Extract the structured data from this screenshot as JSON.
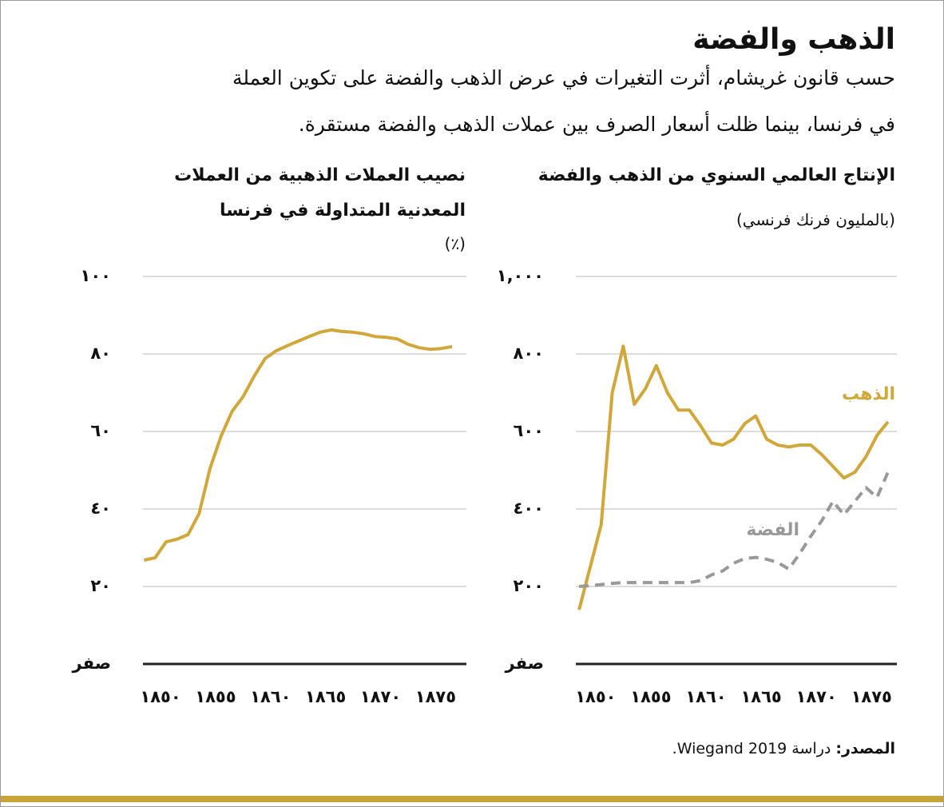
{
  "title": "الذهب والفضة",
  "subtitle": [
    "حسب قانون غريشام، أثرت التغيرات في عرض الذهب والفضة على تكوين العملة",
    "في فرنسا، بينما ظلت أسعار الصرف بين عملات الذهب والفضة مستقرة."
  ],
  "source_label": "المصدر:",
  "source": "دراسة Wiegand 2019.",
  "chart_data": [
    {
      "type": "line",
      "title": "الإنتاج العالمي السنوي من الذهب والفضة",
      "unit": "(بالمليون فرنك فرنسي)",
      "x": [
        1848.5,
        1849.5,
        1850.5,
        1851.5,
        1852.5,
        1853.5,
        1854.5,
        1855.5,
        1856.5,
        1857.5,
        1858.5,
        1859.5,
        1860.5,
        1861.5,
        1862.5,
        1863.5,
        1864.5,
        1865.5,
        1866.5,
        1867.5,
        1868.5,
        1869.5,
        1870.5,
        1871.5,
        1872.5,
        1873.5,
        1874.5,
        1875.5,
        1876.5
      ],
      "series": [
        {
          "name": "الذهب",
          "color": "#d1a73a",
          "dash": false,
          "values": [
            140,
            250,
            360,
            700,
            820,
            670,
            710,
            770,
            700,
            655,
            655,
            615,
            570,
            565,
            580,
            620,
            640,
            580,
            565,
            560,
            565,
            565,
            540,
            510,
            480,
            495,
            535,
            590,
            625
          ]
        },
        {
          "name": "الفضة",
          "color": "#999999",
          "dash": true,
          "values": [
            200,
            202,
            205,
            208,
            210,
            210,
            210,
            210,
            210,
            210,
            210,
            215,
            230,
            240,
            260,
            272,
            275,
            270,
            262,
            245,
            285,
            330,
            370,
            420,
            385,
            420,
            455,
            430,
            495
          ]
        }
      ],
      "xlim": [
        1848.2,
        1877.3
      ],
      "xticks": [
        {
          "value": 1850,
          "label": "١٨٥٠"
        },
        {
          "value": 1855,
          "label": "١٨٥٥"
        },
        {
          "value": 1860,
          "label": "١٨٦٠"
        },
        {
          "value": 1865,
          "label": "١٨٦٥"
        },
        {
          "value": 1870,
          "label": "١٨٧٠"
        },
        {
          "value": 1875,
          "label": "١٨٧٥"
        }
      ],
      "ylim": [
        0,
        1000
      ],
      "yticks": [
        {
          "value": 0,
          "label": "صفر"
        },
        {
          "value": 200,
          "label": "٢٠٠"
        },
        {
          "value": 400,
          "label": "٤٠٠"
        },
        {
          "value": 600,
          "label": "٦٠٠"
        },
        {
          "value": 800,
          "label": "٨٠٠"
        },
        {
          "value": 1000,
          "label": "١,٠٠٠"
        }
      ],
      "grid": true
    },
    {
      "type": "line",
      "title": [
        "نصيب العملات الذهبية من العملات",
        "المعدنية المتداولة في فرنسا"
      ],
      "unit": "(٪)",
      "x": [
        1848.5,
        1849.5,
        1850.5,
        1851.5,
        1852.5,
        1853.5,
        1854.5,
        1855.5,
        1856.5,
        1857.5,
        1858.5,
        1859.5,
        1860.5,
        1861.5,
        1862.5,
        1863.5,
        1864.5,
        1865.5,
        1866.5,
        1867.5,
        1868.5,
        1869.5,
        1870.5,
        1871.5,
        1872.5,
        1873.5,
        1874.5,
        1875.5,
        1876.5
      ],
      "series": [
        {
          "color": "#d1a73a",
          "dash": false,
          "values": [
            26.8,
            27.4,
            31.5,
            32.2,
            33.4,
            38.8,
            50.5,
            58.8,
            65.2,
            69,
            74.2,
            78.8,
            80.8,
            82.1,
            83.3,
            84.5,
            85.6,
            86.2,
            85.8,
            85.6,
            85.2,
            84.5,
            84.3,
            83.9,
            82.5,
            81.6,
            81.2,
            81.4,
            81.9
          ]
        }
      ],
      "xlim": [
        1848.4,
        1877.8
      ],
      "xticks": [
        {
          "value": 1850,
          "label": "١٨٥٠"
        },
        {
          "value": 1855,
          "label": "١٨٥٥"
        },
        {
          "value": 1860,
          "label": "١٨٦٠"
        },
        {
          "value": 1865,
          "label": "١٨٦٥"
        },
        {
          "value": 1870,
          "label": "١٨٧٠"
        },
        {
          "value": 1875,
          "label": "١٨٧٥"
        }
      ],
      "ylim": [
        0,
        100
      ],
      "yticks": [
        {
          "value": 0,
          "label": "صفر"
        },
        {
          "value": 20,
          "label": "٢٠"
        },
        {
          "value": 40,
          "label": "٤٠"
        },
        {
          "value": 60,
          "label": "٦٠"
        },
        {
          "value": 80,
          "label": "٨٠"
        },
        {
          "value": 100,
          "label": "١٠٠"
        }
      ],
      "grid": true
    }
  ]
}
